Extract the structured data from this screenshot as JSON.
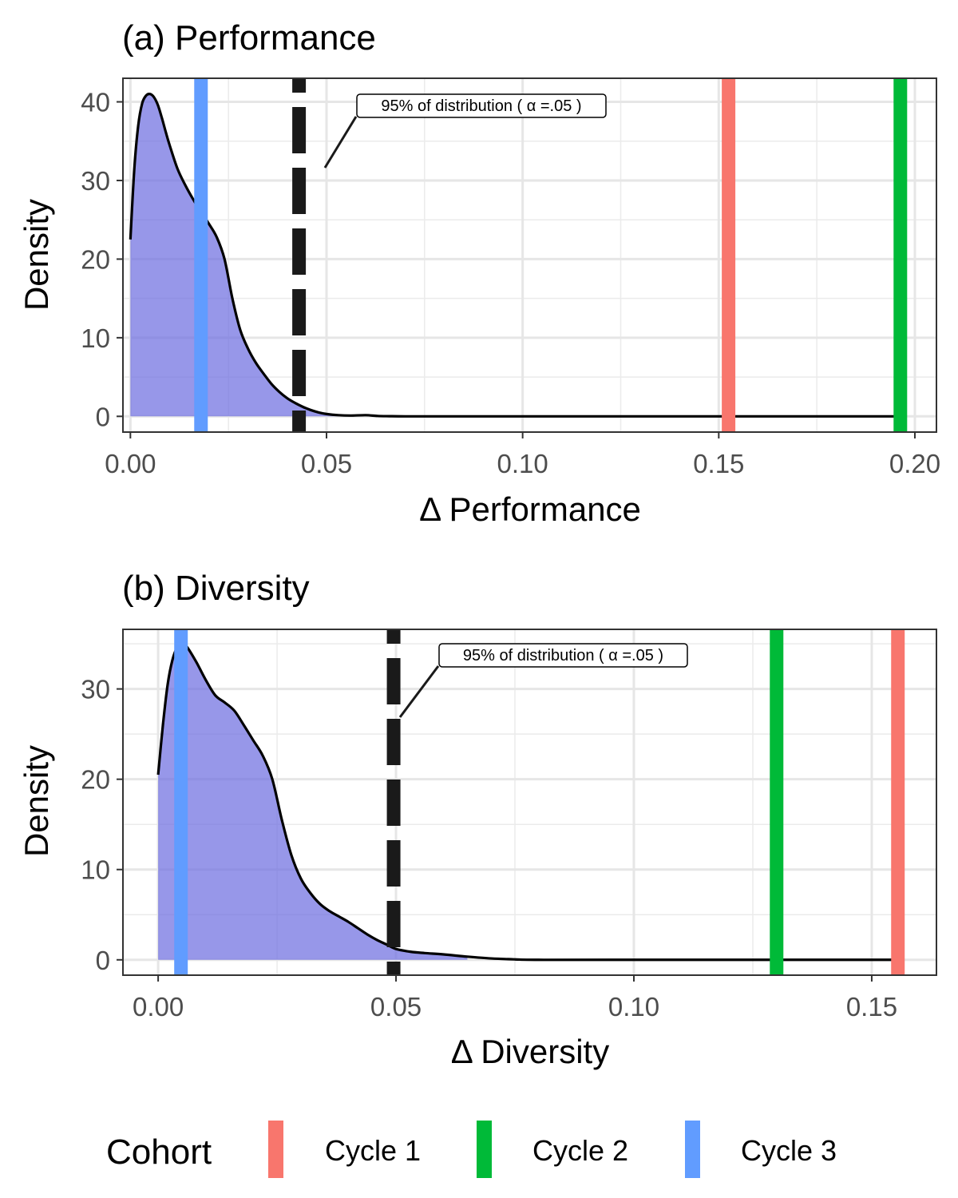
{
  "chart_data": [
    {
      "type": "area",
      "title": "(a) Performance",
      "xlabel": "Δ Performance",
      "ylabel": "Density",
      "xlim": [
        -0.0019,
        0.2055
      ],
      "ylim": [
        -2.0,
        43.0
      ],
      "xticks": [
        0.0,
        0.05,
        0.1,
        0.15,
        0.2
      ],
      "xtick_labels": [
        "0.00",
        "0.05",
        "0.10",
        "0.15",
        "0.20"
      ],
      "yticks": [
        0,
        10,
        20,
        30,
        40
      ],
      "ytick_labels": [
        "0",
        "10",
        "20",
        "30",
        "40"
      ],
      "grid": true,
      "density": {
        "color": "#6b6be0",
        "shade_until": 0.053,
        "x": [
          0.0,
          0.001,
          0.002,
          0.003,
          0.004,
          0.005,
          0.006,
          0.007,
          0.008,
          0.009,
          0.01,
          0.012,
          0.014,
          0.016,
          0.018,
          0.02,
          0.022,
          0.024,
          0.026,
          0.028,
          0.03,
          0.032,
          0.034,
          0.036,
          0.038,
          0.04,
          0.042,
          0.044,
          0.046,
          0.048,
          0.05,
          0.053,
          0.056,
          0.06,
          0.063,
          0.066,
          0.07,
          0.08,
          0.1,
          0.15,
          0.197
        ],
        "y": [
          22.5,
          31.5,
          37.0,
          39.8,
          40.8,
          41.0,
          40.6,
          39.6,
          38.0,
          36.2,
          34.5,
          31.5,
          29.4,
          27.6,
          26.0,
          24.5,
          22.8,
          20.0,
          15.0,
          11.0,
          8.6,
          6.8,
          5.4,
          4.1,
          3.1,
          2.3,
          1.7,
          1.2,
          0.8,
          0.5,
          0.3,
          0.15,
          0.1,
          0.15,
          0.05,
          0.02,
          0.0,
          0.0,
          0.0,
          0.0,
          0.0
        ]
      },
      "threshold": {
        "x": 0.043,
        "label": "95% of distribution ( α =.05 )"
      },
      "cohort_lines": [
        {
          "cohort": "Cycle 1",
          "x": 0.1525,
          "color": "#F8766D"
        },
        {
          "cohort": "Cycle 2",
          "x": 0.1963,
          "color": "#00BA38"
        },
        {
          "cohort": "Cycle 3",
          "x": 0.018,
          "color": "#619CFF"
        }
      ]
    },
    {
      "type": "area",
      "title": "(b) Diversity",
      "xlabel": "Δ Diversity",
      "ylabel": "Density",
      "xlim": [
        -0.0074,
        0.1636
      ],
      "ylim": [
        -1.7,
        36.6
      ],
      "xticks": [
        0.0,
        0.05,
        0.1,
        0.15
      ],
      "xtick_labels": [
        "0.00",
        "0.05",
        "0.10",
        "0.15"
      ],
      "yticks": [
        0,
        10,
        20,
        30
      ],
      "ytick_labels": [
        "0",
        "10",
        "20",
        "30"
      ],
      "grid": true,
      "density": {
        "color": "#6b6be0",
        "shade_until": 0.066,
        "x": [
          0.0,
          0.001,
          0.002,
          0.003,
          0.004,
          0.005,
          0.006,
          0.008,
          0.01,
          0.012,
          0.014,
          0.016,
          0.018,
          0.02,
          0.022,
          0.024,
          0.026,
          0.028,
          0.03,
          0.032,
          0.034,
          0.036,
          0.038,
          0.04,
          0.042,
          0.044,
          0.046,
          0.048,
          0.05,
          0.053,
          0.056,
          0.06,
          0.065,
          0.07,
          0.075,
          0.08,
          0.1,
          0.155
        ],
        "y": [
          20.5,
          26.0,
          30.5,
          33.2,
          34.6,
          35.0,
          34.7,
          33.0,
          31.0,
          29.3,
          28.5,
          27.6,
          26.0,
          24.3,
          22.6,
          20.0,
          15.5,
          11.6,
          9.0,
          7.4,
          6.2,
          5.4,
          4.8,
          4.2,
          3.5,
          2.8,
          2.2,
          1.7,
          1.2,
          0.9,
          0.75,
          0.6,
          0.35,
          0.15,
          0.05,
          0.0,
          0.0,
          0.0
        ]
      },
      "threshold": {
        "x": 0.0495,
        "label": "95% of distribution ( α =.05 )"
      },
      "cohort_lines": [
        {
          "cohort": "Cycle 1",
          "x": 0.1555,
          "color": "#F8766D"
        },
        {
          "cohort": "Cycle 2",
          "x": 0.13,
          "color": "#00BA38"
        },
        {
          "cohort": "Cycle 3",
          "x": 0.0048,
          "color": "#619CFF"
        }
      ]
    }
  ],
  "legend": {
    "title": "Cohort",
    "items": [
      {
        "label": "Cycle 1",
        "color": "#F8766D"
      },
      {
        "label": "Cycle 2",
        "color": "#00BA38"
      },
      {
        "label": "Cycle 3",
        "color": "#619CFF"
      }
    ]
  }
}
